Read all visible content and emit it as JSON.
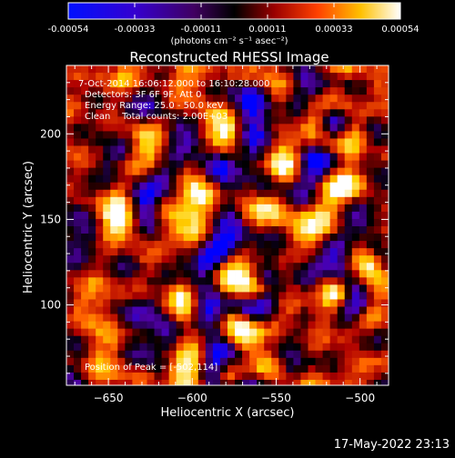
{
  "colorbar": {
    "ticks": [
      "-0.00054",
      "-0.00033",
      "-0.00011",
      "0.00011",
      "0.00033",
      "0.00054"
    ],
    "units": "(photons cm⁻² s⁻¹ asec⁻²)"
  },
  "title": "Reconstructed RHESSI Image",
  "annotations": {
    "time": "7-Oct-2014 16:06:12.000 to 16:10:28.000",
    "detectors": "Detectors: 3F 6F 9F, Att 0",
    "energy": "Energy Range: 25.0 - 50.0 keV",
    "method": "Clean    Total counts: 2.00E+03",
    "peak": "Position of Peak = [-502,114]"
  },
  "footer": {
    "date": "17-May-2022 23:13"
  },
  "chart_data": {
    "type": "heatmap",
    "title": "Reconstructed RHESSI Image",
    "xlabel": "Heliocentric X (arcsec)",
    "ylabel": "Heliocentric Y (arcsec)",
    "x_ticks": [
      -650,
      -600,
      -550,
      -500
    ],
    "y_ticks": [
      100,
      150,
      200
    ],
    "xlim": [
      -675,
      -483
    ],
    "ylim": [
      53,
      240
    ],
    "colorbar_range": [
      -0.00054,
      0.00054
    ],
    "colormap": [
      "#0000ff",
      "#5000a8",
      "#000000",
      "#b00000",
      "#ff6000",
      "#ffd000",
      "#ffffff"
    ],
    "peak": [
      -502,
      114
    ]
  }
}
